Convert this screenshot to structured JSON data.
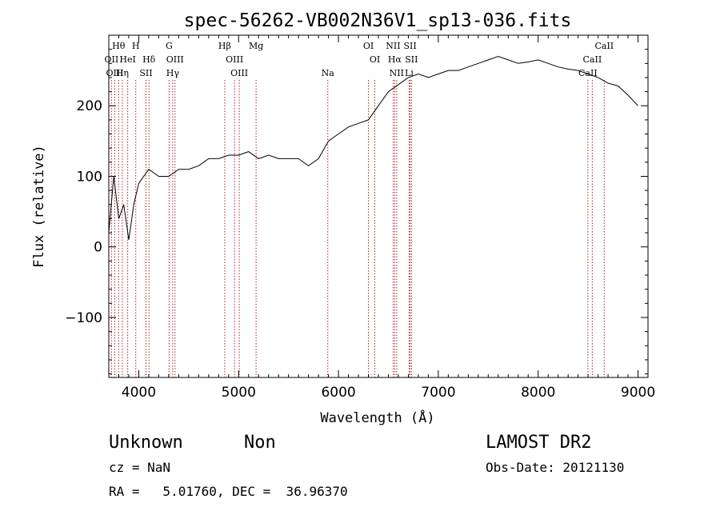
{
  "chart_data": {
    "type": "line",
    "title": "spec-56262-VB002N36V1_sp13-036.fits",
    "xlabel": "Wavelength (Å)",
    "ylabel": "Flux (relative)",
    "xlim": [
      3700,
      9100
    ],
    "ylim": [
      -185,
      300
    ],
    "xticks": [
      4000,
      5000,
      6000,
      7000,
      8000,
      9000
    ],
    "xtick_labels": [
      "4000",
      "5000",
      "6000",
      "7000",
      "8000",
      "9000"
    ],
    "yticks": [
      -100,
      0,
      100,
      200
    ],
    "ytick_labels": [
      "−100",
      "0",
      "100",
      "200"
    ],
    "grid": false,
    "series": [
      {
        "x": [
          3700,
          3750,
          3800,
          3850,
          3900,
          3950,
          4000,
          4100,
          4200,
          4300,
          4400,
          4500,
          4600,
          4700,
          4800,
          4900,
          5000,
          5100,
          5200,
          5300,
          5400,
          5500,
          5600,
          5700,
          5800,
          5900,
          6000,
          6100,
          6200,
          6300,
          6400,
          6500,
          6600,
          6700,
          6800,
          6900,
          7000,
          7100,
          7200,
          7300,
          7400,
          7500,
          7600,
          7700,
          7800,
          7900,
          8000,
          8100,
          8200,
          8300,
          8400,
          8500,
          8600,
          8700,
          8800,
          8900,
          9000
        ],
        "y": [
          20,
          100,
          40,
          60,
          10,
          60,
          90,
          110,
          100,
          100,
          110,
          110,
          115,
          125,
          125,
          130,
          130,
          135,
          125,
          130,
          125,
          125,
          125,
          115,
          125,
          150,
          160,
          170,
          175,
          180,
          200,
          220,
          230,
          240,
          245,
          240,
          245,
          250,
          250,
          255,
          260,
          265,
          270,
          265,
          260,
          262,
          265,
          260,
          255,
          252,
          250,
          245,
          240,
          232,
          228,
          215,
          200
        ]
      }
    ],
    "emission_lines": [
      {
        "label": "Hθ",
        "wavelength": 3798,
        "row": 0
      },
      {
        "label": "H",
        "wavelength": 3970,
        "row": 0
      },
      {
        "label": "G",
        "wavelength": 4304,
        "row": 0
      },
      {
        "label": "Hβ",
        "wavelength": 4861,
        "row": 0
      },
      {
        "label": "Mg",
        "wavelength": 5175,
        "row": 0
      },
      {
        "label": "OI",
        "wavelength": 6300,
        "row": 0
      },
      {
        "label": "NII",
        "wavelength": 6548,
        "row": 0
      },
      {
        "label": "SII",
        "wavelength": 6717,
        "row": 0
      },
      {
        "label": "CaII",
        "wavelength": 8662,
        "row": 0
      },
      {
        "label": "OII",
        "wavelength": 3727,
        "row": 1
      },
      {
        "label": "HeI",
        "wavelength": 3889,
        "row": 1
      },
      {
        "label": "Hδ",
        "wavelength": 4102,
        "row": 1
      },
      {
        "label": "OIII",
        "wavelength": 4363,
        "row": 1
      },
      {
        "label": "OIII",
        "wavelength": 4959,
        "row": 1
      },
      {
        "label": "OI",
        "wavelength": 6364,
        "row": 1
      },
      {
        "label": "Hα",
        "wavelength": 6563,
        "row": 1
      },
      {
        "label": "SII",
        "wavelength": 6731,
        "row": 1
      },
      {
        "label": "CaII",
        "wavelength": 8542,
        "row": 1
      },
      {
        "label": "OIII",
        "wavelength": 3760,
        "row": 2
      },
      {
        "label": "Hη",
        "wavelength": 3835,
        "row": 2
      },
      {
        "label": "SII",
        "wavelength": 4072,
        "row": 2
      },
      {
        "label": "Hγ",
        "wavelength": 4340,
        "row": 2
      },
      {
        "label": "OIII",
        "wavelength": 5007,
        "row": 2
      },
      {
        "label": "Na",
        "wavelength": 5893,
        "row": 2
      },
      {
        "label": "NII",
        "wavelength": 6583,
        "row": 2
      },
      {
        "label": "Li",
        "wavelength": 6708,
        "row": 2
      },
      {
        "label": "CaII",
        "wavelength": 8498,
        "row": 2
      }
    ]
  },
  "info": {
    "class": "Unknown",
    "subclass": "Non",
    "survey": "LAMOST DR2",
    "cz": "cz = NaN",
    "obs_date": "Obs-Date: 20121130",
    "coords": "RA =   5.01760, DEC =  36.96370"
  }
}
